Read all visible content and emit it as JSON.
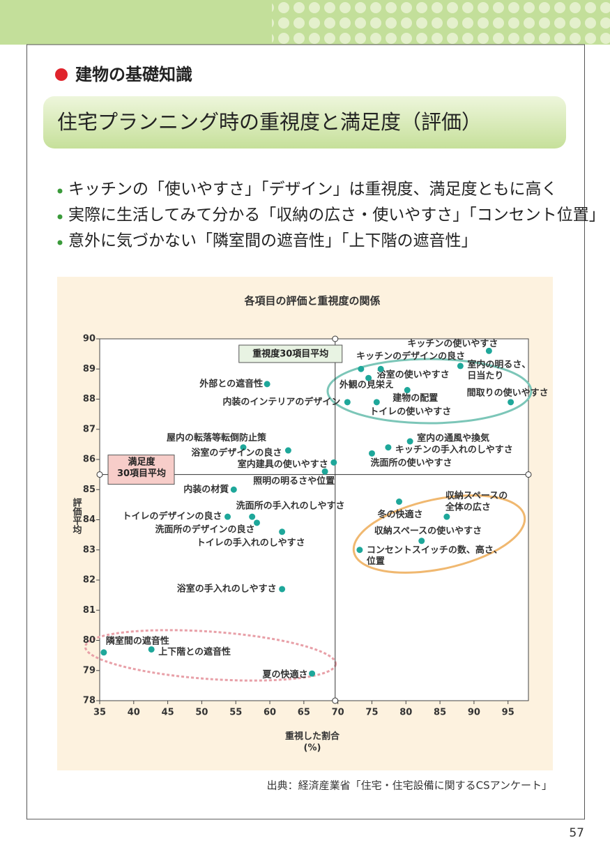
{
  "header": {
    "section": "建物の基礎知識",
    "title": "住宅プランニング時の重視度と満足度（評価）"
  },
  "bullets": [
    "キッチンの「使いやすさ」「デザイン」は重視度、満足度ともに高く",
    "実際に生活してみて分かる「収納の広さ・使いやすさ」「コンセント位置」",
    "意外に気づかない「隣室間の遮音性」「上下階の遮音性」"
  ],
  "chart_data": {
    "type": "scatter",
    "title": "各項目の評価と重視度の関係",
    "x_label": "重視した割合\n(%)",
    "y_label": "評価平均",
    "xlim": [
      35,
      98
    ],
    "ylim": [
      78,
      90
    ],
    "xticks": [
      35,
      40,
      45,
      50,
      55,
      60,
      65,
      70,
      75,
      80,
      85,
      90,
      95
    ],
    "yticks": [
      78,
      79,
      80,
      81,
      82,
      83,
      84,
      85,
      86,
      87,
      88,
      89,
      90
    ],
    "color": "#1ea79a",
    "labels": [
      "キッチンの使いやすさ",
      "外観の見栄え",
      "浴室の使いやすさ",
      "キッチンのデザインの良さ",
      "室内の明るさ、\n日当たり",
      "建物の配置",
      "間取りの使いやすさ",
      "内装のインテリアのデザイン",
      "トイレの使いやすさ",
      "外部との遮音性",
      "室内の通風や換気",
      "キッチンの手入れのしやすさ",
      "洗面所の使いやすさ",
      "屋内の転落等転倒防止策",
      "浴室のデザインの良さ",
      "室内建具の使いやすさ",
      "照明の明るさや位置",
      "内装の材質",
      "洗面所の手入れのしやすさ",
      "トイレのデザインの良さ",
      "洗面所のデザインの良さ",
      "トイレの手入れのしやすさ",
      "冬の快適さ",
      "収納スペースの\n全体の広さ",
      "収納スペースの使いやすさ",
      "コンセントスイッチの数、高さ、\n位置",
      "浴室の手入れのしやすさ",
      "隣室間の遮音性",
      "上下階との遮音性",
      "夏の快適さ"
    ],
    "x": [
      92.2,
      73.4,
      74.5,
      76.3,
      88.0,
      80.2,
      95.4,
      71.4,
      75.7,
      59.6,
      80.6,
      77.4,
      75.0,
      56.1,
      62.7,
      69.4,
      68.1,
      54.7,
      57.4,
      53.8,
      58.1,
      61.8,
      79.0,
      86.0,
      82.3,
      73.2,
      61.8,
      35.6,
      42.6,
      66.2
    ],
    "values": [
      89.6,
      89.0,
      88.7,
      89.0,
      89.1,
      88.3,
      87.9,
      87.9,
      87.9,
      88.5,
      86.6,
      86.4,
      86.2,
      86.4,
      86.3,
      85.9,
      85.6,
      85.0,
      84.1,
      84.1,
      83.9,
      83.6,
      84.6,
      84.1,
      83.3,
      83.0,
      81.7,
      79.6,
      79.7,
      78.9
    ],
    "annotations": [
      {
        "text": "重視度30項目平均",
        "x": 69.6
      },
      {
        "text": "満足度\n30項目平均",
        "y": 85.5
      }
    ],
    "source": "出典：経済産業省「住宅・住宅設備に関するCSアンケート」"
  },
  "page_number": "57"
}
